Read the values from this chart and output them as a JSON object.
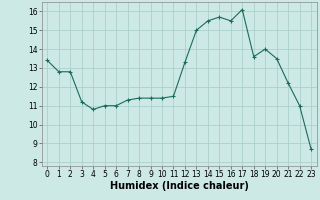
{
  "x": [
    0,
    1,
    2,
    3,
    4,
    5,
    6,
    7,
    8,
    9,
    10,
    11,
    12,
    13,
    14,
    15,
    16,
    17,
    18,
    19,
    20,
    21,
    22,
    23
  ],
  "y": [
    13.4,
    12.8,
    12.8,
    11.2,
    10.8,
    11.0,
    11.0,
    11.3,
    11.4,
    11.4,
    11.4,
    11.5,
    13.3,
    15.0,
    15.5,
    15.7,
    15.5,
    16.1,
    13.6,
    14.0,
    13.5,
    12.2,
    11.0,
    8.7
  ],
  "xlabel": "Humidex (Indice chaleur)",
  "xlim": [
    -0.5,
    23.5
  ],
  "ylim": [
    7.8,
    16.5
  ],
  "yticks": [
    8,
    9,
    10,
    11,
    12,
    13,
    14,
    15,
    16
  ],
  "xticks": [
    0,
    1,
    2,
    3,
    4,
    5,
    6,
    7,
    8,
    9,
    10,
    11,
    12,
    13,
    14,
    15,
    16,
    17,
    18,
    19,
    20,
    21,
    22,
    23
  ],
  "line_color": "#1a6b5a",
  "marker": "+",
  "bg_color": "#cce9e5",
  "grid_color": "#aed0cb",
  "tick_label_size": 5.5,
  "xlabel_size": 7.0
}
